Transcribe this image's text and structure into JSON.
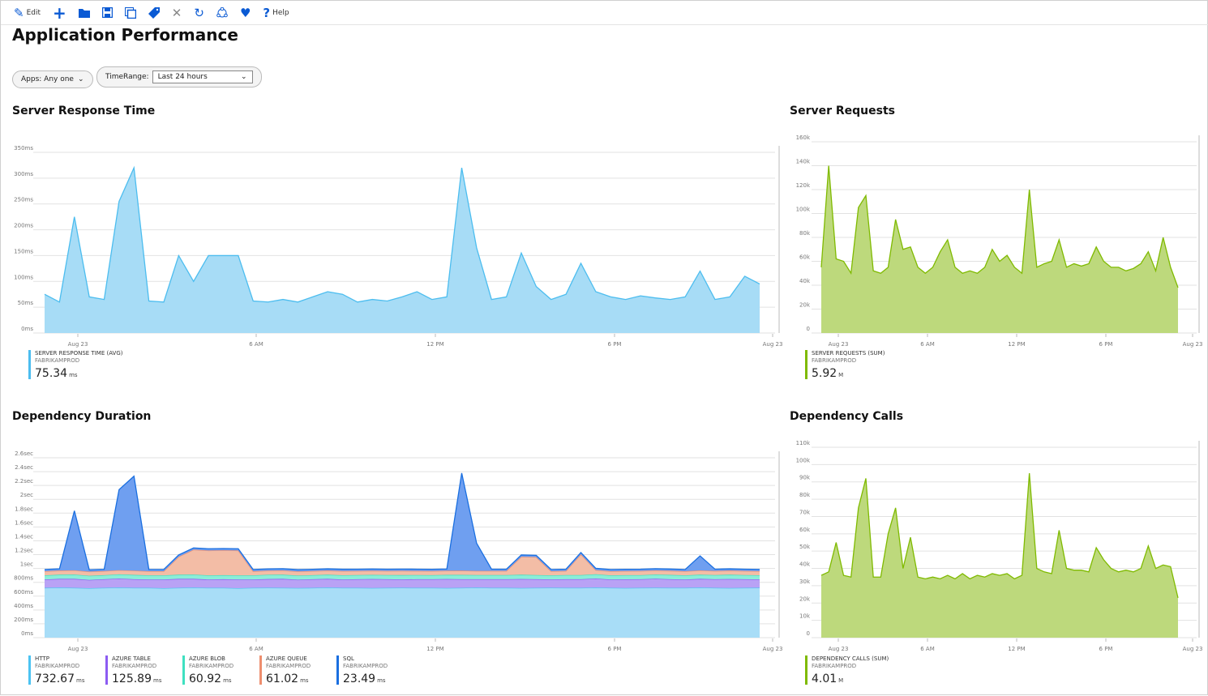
{
  "toolbar": {
    "edit": "Edit",
    "help": "Help",
    "icons": [
      "pencil-icon",
      "plus-icon",
      "folder-icon",
      "save-icon",
      "save-as-icon",
      "tag-icon",
      "close-icon",
      "refresh-icon",
      "share-icon",
      "heart-icon",
      "help-icon"
    ]
  },
  "title": "Application Performance",
  "filters": {
    "apps_label": "Apps: Any one",
    "timerange_label": "TimeRange:",
    "timerange_value": "Last 24 hours"
  },
  "x_ticks": [
    "Aug 23",
    "6 AM",
    "12 PM",
    "6 PM",
    "Aug 23"
  ],
  "chart_data": [
    {
      "title": "Server Response Time",
      "type": "area",
      "ylim": [
        0,
        350
      ],
      "yticks": [
        "0ms",
        "50ms",
        "100ms",
        "150ms",
        "200ms",
        "250ms",
        "300ms",
        "350ms"
      ],
      "series": [
        {
          "name": "SERVER RESPONSE TIME (AVG)",
          "sub": "FABRIKAMPROD",
          "total": "75.34",
          "unit": "ms",
          "line": "#4cbdef",
          "fill": "#a7dcf6",
          "values": [
            75,
            60,
            225,
            70,
            65,
            255,
            320,
            62,
            60,
            150,
            100,
            150,
            150,
            150,
            62,
            60,
            65,
            60,
            70,
            80,
            75,
            60,
            65,
            62,
            70,
            80,
            65,
            70,
            320,
            165,
            65,
            70,
            155,
            90,
            65,
            75,
            135,
            80,
            70,
            65,
            72,
            68,
            65,
            70,
            120,
            65,
            70,
            110,
            95
          ]
        }
      ]
    },
    {
      "title": "Server Requests",
      "type": "area",
      "ylim": [
        0,
        160000
      ],
      "yticks": [
        "0",
        "20k",
        "40k",
        "60k",
        "80k",
        "100k",
        "120k",
        "140k",
        "160k"
      ],
      "series": [
        {
          "name": "SERVER REQUESTS (SUM)",
          "sub": "FABRIKAMPROD",
          "total": "5.92",
          "unit": "M",
          "line": "#7fba00",
          "fill": "#bdd97c",
          "values": [
            55000,
            140000,
            62000,
            60000,
            50000,
            105000,
            115000,
            52000,
            50000,
            55000,
            95000,
            70000,
            72000,
            55000,
            50000,
            55000,
            68000,
            78000,
            55000,
            50000,
            52000,
            50000,
            55000,
            70000,
            60000,
            65000,
            55000,
            50000,
            120000,
            55000,
            58000,
            60000,
            78000,
            55000,
            58000,
            56000,
            58000,
            72000,
            60000,
            55000,
            55000,
            52000,
            54000,
            58000,
            68000,
            52000,
            80000,
            55000,
            38000
          ]
        }
      ]
    },
    {
      "title": "Dependency Duration",
      "type": "stacked-area",
      "ylim": [
        0,
        2600
      ],
      "yticks": [
        "0ms",
        "200ms",
        "400ms",
        "600ms",
        "800ms",
        "1sec",
        "1.2sec",
        "1.4sec",
        "1.6sec",
        "1.8sec",
        "2sec",
        "2.2sec",
        "2.4sec",
        "2.6sec"
      ],
      "series": [
        {
          "name": "HTTP",
          "sub": "FABRIKAMPROD",
          "total": "732.67",
          "unit": "ms",
          "line": "#4cc3f2",
          "fill": "#a8ddf7",
          "values": [
            720,
            725,
            720,
            715,
            720,
            725,
            720,
            720,
            715,
            720,
            725,
            720,
            720,
            715,
            720,
            722,
            720,
            718,
            720,
            725,
            720,
            720,
            718,
            720,
            722,
            720,
            720,
            718,
            720,
            725,
            720,
            720,
            718,
            720,
            722,
            720,
            720,
            725,
            720,
            718,
            720,
            722,
            720,
            720,
            725,
            720,
            718,
            720,
            722
          ]
        },
        {
          "name": "AZURE TABLE",
          "sub": "FABRIKAMPROD",
          "total": "125.89",
          "unit": "ms",
          "line": "#8c5cf2",
          "fill": "#b9a2f5",
          "values": [
            120,
            125,
            130,
            120,
            125,
            130,
            125,
            120,
            125,
            130,
            125,
            120,
            125,
            125,
            120,
            125,
            130,
            120,
            125,
            125,
            120,
            125,
            130,
            125,
            120,
            125,
            125,
            130,
            125,
            120,
            125,
            125,
            130,
            125,
            120,
            125,
            125,
            130,
            120,
            125,
            125,
            130,
            125,
            120,
            125,
            125,
            130,
            125,
            120
          ]
        },
        {
          "name": "AZURE BLOB",
          "sub": "FABRIKAMPROD",
          "total": "60.92",
          "unit": "ms",
          "line": "#3fe0c0",
          "fill": "#8cedd8",
          "values": [
            60,
            60,
            62,
            60,
            58,
            60,
            62,
            60,
            60,
            60,
            62,
            60,
            58,
            60,
            60,
            62,
            60,
            60,
            58,
            60,
            62,
            60,
            60,
            60,
            62,
            60,
            58,
            60,
            62,
            60,
            60,
            60,
            62,
            60,
            58,
            60,
            60,
            62,
            60,
            60,
            58,
            60,
            62,
            60,
            60,
            60,
            62,
            60,
            60
          ]
        },
        {
          "name": "AZURE QUEUE",
          "sub": "FABRIKAMPROD",
          "total": "61.02",
          "unit": "ms",
          "line": "#ee8e6e",
          "fill": "#f3bda6",
          "values": [
            60,
            60,
            62,
            60,
            60,
            60,
            62,
            60,
            60,
            260,
            360,
            360,
            360,
            360,
            60,
            60,
            62,
            60,
            60,
            60,
            62,
            60,
            60,
            60,
            62,
            60,
            60,
            60,
            62,
            60,
            60,
            60,
            260,
            260,
            60,
            60,
            300,
            60,
            60,
            60,
            62,
            60,
            60,
            60,
            62,
            60,
            60,
            60,
            60
          ]
        },
        {
          "name": "SQL",
          "sub": "FABRIKAMPROD",
          "total": "23.49",
          "unit": "ms",
          "line": "#1a6fe0",
          "fill": "#6f9ff0",
          "values": [
            25,
            25,
            860,
            25,
            25,
            1165,
            1365,
            25,
            25,
            25,
            25,
            25,
            25,
            25,
            25,
            25,
            25,
            25,
            25,
            25,
            25,
            25,
            25,
            25,
            25,
            25,
            25,
            25,
            1410,
            400,
            25,
            25,
            25,
            25,
            25,
            25,
            25,
            25,
            25,
            25,
            25,
            25,
            25,
            25,
            210,
            25,
            25,
            25,
            25
          ]
        }
      ]
    },
    {
      "title": "Dependency Calls",
      "type": "area",
      "ylim": [
        0,
        110000
      ],
      "yticks": [
        "0",
        "10k",
        "20k",
        "30k",
        "40k",
        "50k",
        "60k",
        "70k",
        "80k",
        "90k",
        "100k",
        "110k"
      ],
      "series": [
        {
          "name": "DEPENDENCY CALLS (SUM)",
          "sub": "FABRIKAMPROD",
          "total": "4.01",
          "unit": "M",
          "line": "#7fba00",
          "fill": "#bdd97c",
          "values": [
            36000,
            38000,
            55000,
            36000,
            35000,
            75000,
            92000,
            35000,
            35000,
            60000,
            75000,
            40000,
            58000,
            35000,
            34000,
            35000,
            34000,
            36000,
            34000,
            37000,
            34000,
            36000,
            35000,
            37000,
            36000,
            37000,
            34000,
            36000,
            95000,
            40000,
            38000,
            37000,
            62000,
            40000,
            39000,
            39000,
            38000,
            52000,
            45000,
            40000,
            38000,
            39000,
            38000,
            40000,
            53000,
            40000,
            42000,
            41000,
            23000
          ]
        }
      ]
    }
  ]
}
